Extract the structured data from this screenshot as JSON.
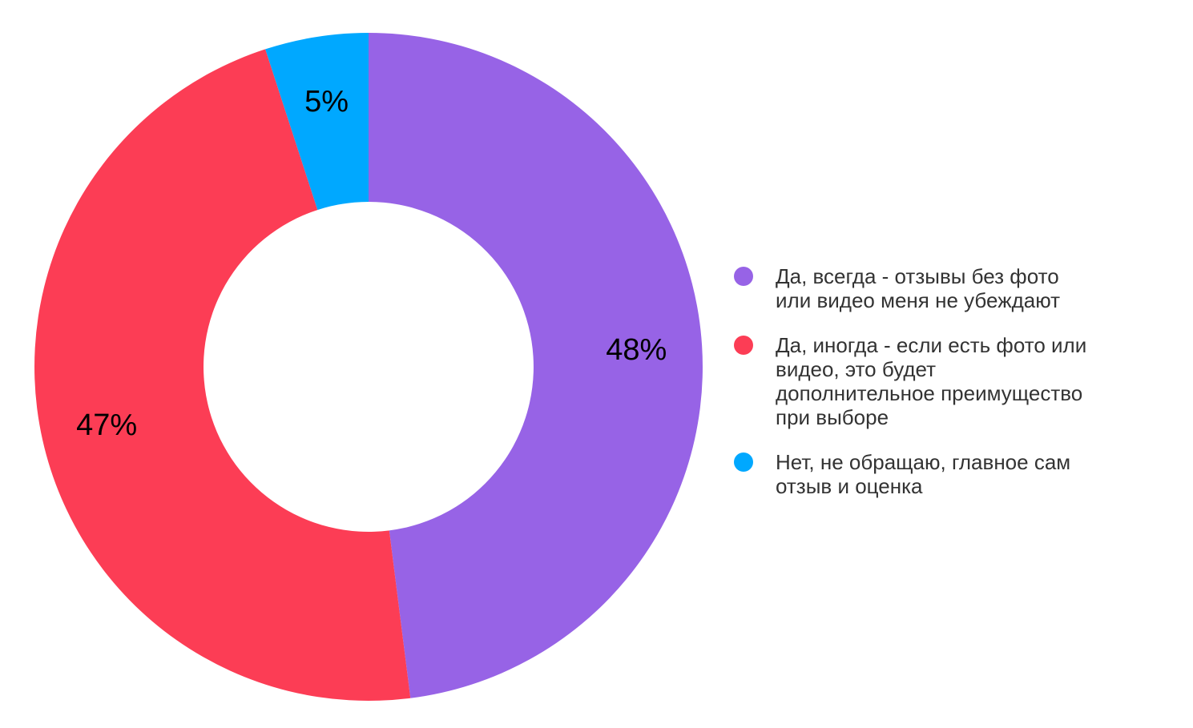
{
  "chart_data": {
    "type": "pie",
    "subtype": "donut",
    "title": "",
    "labels": [
      "Да, всегда - отзывы без фото или видео меня не убеждают",
      "Да, иногда - если есть фото или видео, это будет дополнительное преимущество при выборе",
      "Нет, не обращаю, главное сам отзыв и оценка"
    ],
    "values": [
      48,
      47,
      5
    ],
    "value_labels": [
      "48%",
      "47%",
      "5%"
    ],
    "unit": "%",
    "colors": [
      "#9763E6",
      "#FC3D55",
      "#00A8FF"
    ],
    "label_color": "#000000",
    "donut_hole_ratio": 0.494,
    "start_angle_deg": 0,
    "direction": "clockwise",
    "legend_position": "right",
    "grid": false
  },
  "legend": {
    "items": [
      {
        "label": "Да, всегда - отзывы без фото\nили видео меня не убеждают",
        "color": "#9763E6"
      },
      {
        "label": "Да, иногда - если есть фото или\nвидео, это будет\nдополнительное преимущество\nпри выборе",
        "color": "#FC3D55"
      },
      {
        "label": "Нет, не обращаю, главное сам\nотзыв и оценка",
        "color": "#00A8FF"
      }
    ]
  }
}
